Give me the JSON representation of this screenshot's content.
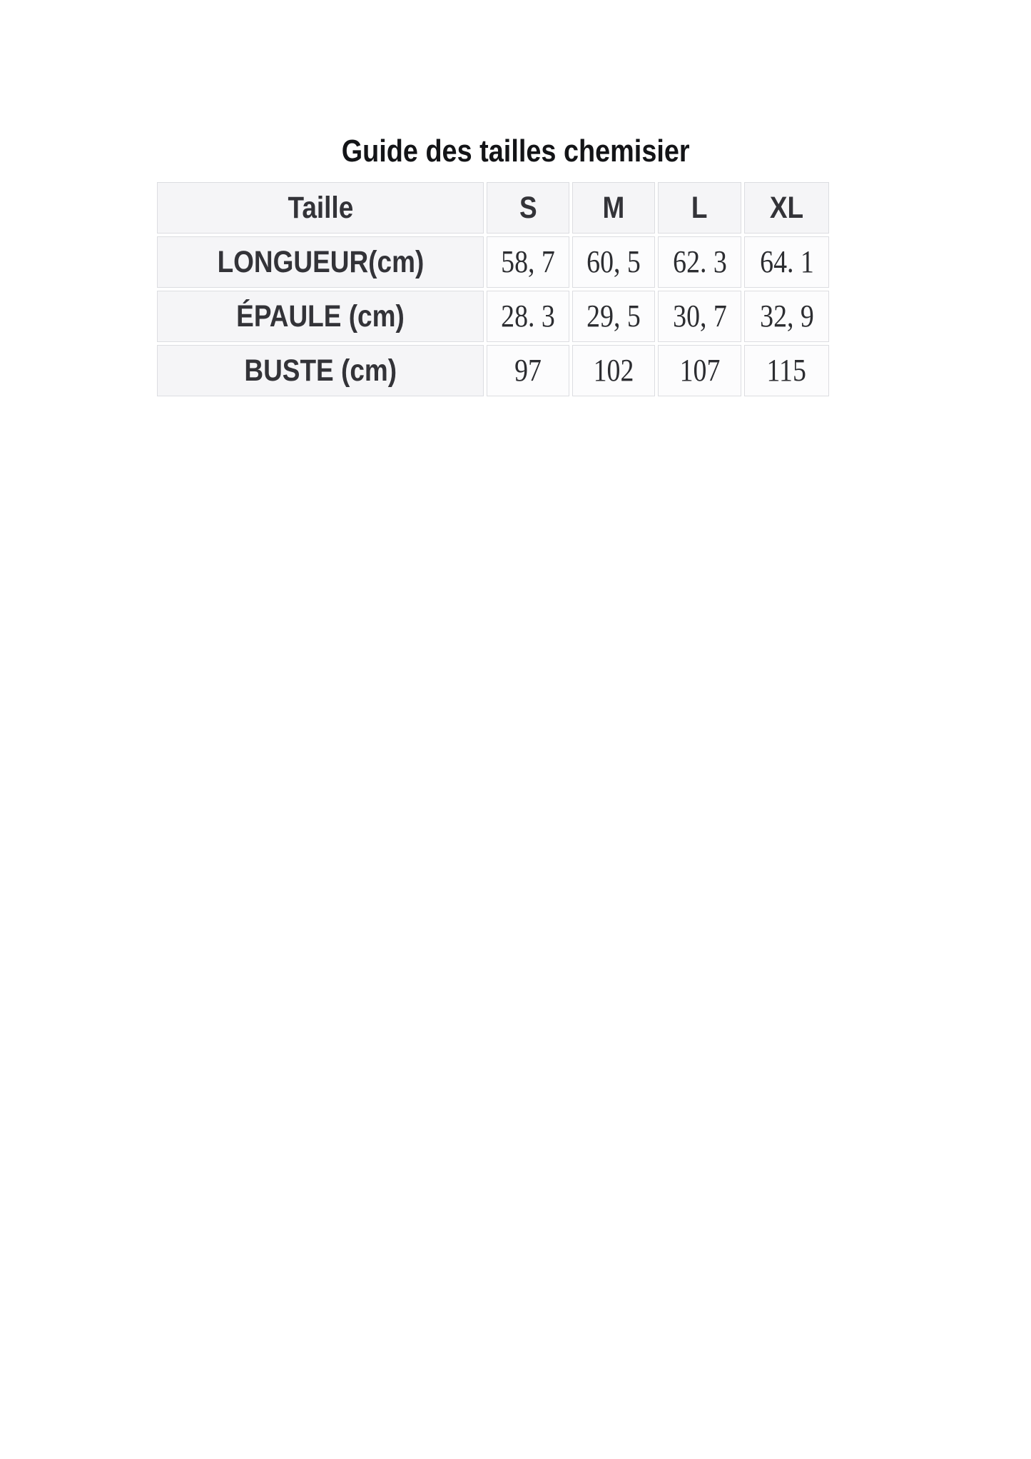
{
  "title": "Guide des tailles chemisier",
  "chart_data": {
    "type": "table",
    "title": "Guide des tailles chemisier",
    "columns": [
      "Taille",
      "S",
      "M",
      "L",
      "XL"
    ],
    "rows": [
      [
        "LONGUEUR(cm)",
        "58, 7",
        "60, 5",
        "62. 3",
        "64. 1"
      ],
      [
        "ÉPAULE (cm)",
        "28. 3",
        "29, 5",
        "30, 7",
        "32, 9"
      ],
      [
        "BUSTE (cm)",
        "97",
        "102",
        "107",
        "115"
      ]
    ]
  },
  "colors": {
    "page_bg": "#ffffff",
    "header_cell_bg": "#f5f5f7",
    "value_cell_bg": "#fcfcfd",
    "cell_border": "#dcdde1",
    "cell_gap": "#ffffff",
    "label_text": "#333338",
    "value_text": "#2c2d31",
    "title_text": "#131417"
  }
}
